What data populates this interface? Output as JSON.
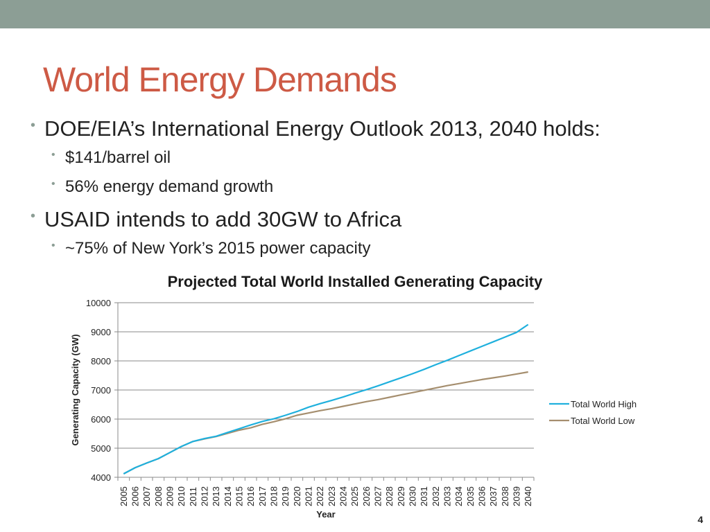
{
  "slide": {
    "title": "World Energy Demands",
    "bullets": [
      {
        "text": "DOE/EIA’s International Energy Outlook 2013, 2040 holds:",
        "level": 1
      },
      {
        "text": "$141/barrel oil",
        "level": 2
      },
      {
        "text": "56% energy demand growth",
        "level": 2
      },
      {
        "text": "USAID intends to add 30GW to Africa",
        "level": 1
      },
      {
        "text": "~75% of New York’s 2015 power capacity",
        "level": 2
      }
    ],
    "page_number": "4"
  },
  "chart_data": {
    "type": "line",
    "title": "Projected Total World Installed Generating Capacity",
    "xlabel": "Year",
    "ylabel": "Generating Capacity (GW)",
    "ylim": [
      4000,
      10000
    ],
    "yticks": [
      4000,
      5000,
      6000,
      7000,
      8000,
      9000,
      10000
    ],
    "grid": true,
    "legend": "right",
    "x": [
      "2005",
      "2006",
      "2007",
      "2008",
      "2009",
      "2010",
      "2011",
      "2012",
      "2013",
      "2014",
      "2015",
      "2016",
      "2017",
      "2018",
      "2019",
      "2020",
      "2021",
      "2022",
      "2023",
      "2024",
      "2025",
      "2026",
      "2027",
      "2028",
      "2029",
      "2030",
      "2031",
      "2032",
      "2033",
      "2034",
      "2035",
      "2036",
      "2037",
      "2038",
      "2039",
      "2040"
    ],
    "series": [
      {
        "name": "Total World High",
        "color": "#1fb0dd",
        "values": [
          4120,
          4330,
          4490,
          4640,
          4850,
          5060,
          5230,
          5330,
          5410,
          5540,
          5670,
          5800,
          5920,
          6010,
          6130,
          6260,
          6410,
          6530,
          6640,
          6760,
          6890,
          7010,
          7140,
          7280,
          7420,
          7560,
          7710,
          7870,
          8020,
          8180,
          8340,
          8500,
          8660,
          8820,
          8980,
          9250
        ]
      },
      {
        "name": "Total World Low",
        "color": "#a58e6e",
        "values": [
          4120,
          4330,
          4490,
          4640,
          4850,
          5060,
          5230,
          5320,
          5400,
          5510,
          5620,
          5700,
          5820,
          5910,
          6010,
          6130,
          6210,
          6290,
          6360,
          6440,
          6520,
          6600,
          6670,
          6750,
          6830,
          6910,
          6990,
          7070,
          7150,
          7220,
          7290,
          7360,
          7420,
          7480,
          7550,
          7620
        ]
      }
    ]
  }
}
